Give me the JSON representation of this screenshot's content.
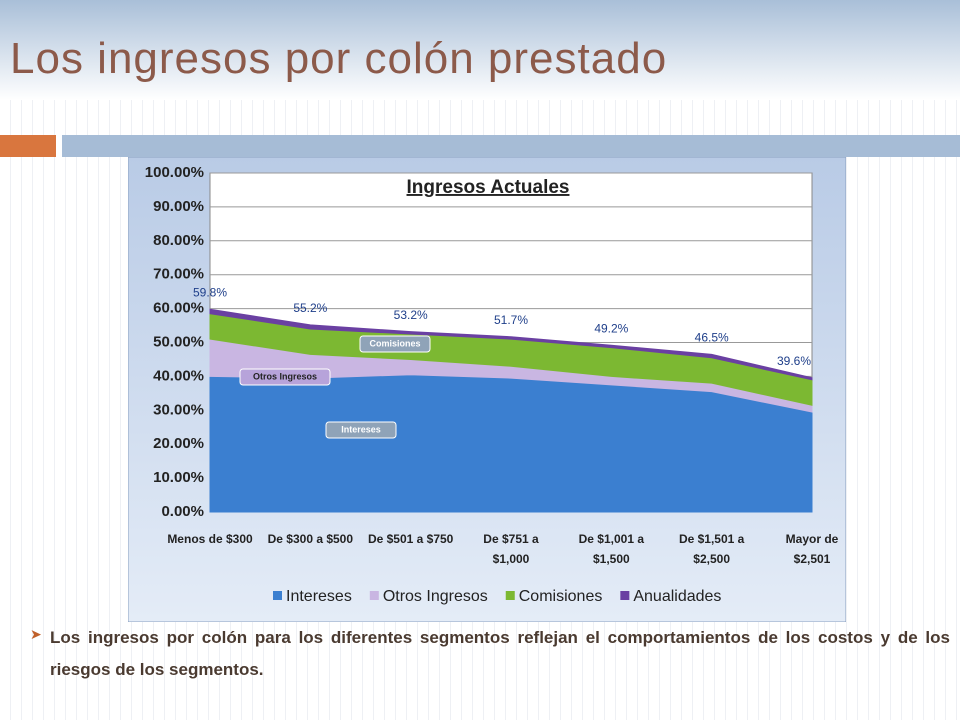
{
  "slide": {
    "title": "Los ingresos por colón prestado",
    "bullet": "Los ingresos por colón para los diferentes segmentos reflejan el comportamientos de los costos y de los riesgos de los segmentos."
  },
  "chart_data": {
    "type": "stacked-area",
    "title": "Ingresos Actuales",
    "categories": [
      "Menos de $300",
      "De $300 a $500",
      "De $501 a $750",
      "De $751 a $1,000",
      "De $1,001 a $1,500",
      "De $1,501 a $2,500",
      "Mayor de $2,501"
    ],
    "series": [
      {
        "name": "Intereses",
        "color": "#3b7fd0",
        "values": [
          40,
          39.5,
          40.5,
          39.5,
          37.5,
          35.5,
          29.5
        ]
      },
      {
        "name": "Otros Ingresos",
        "color": "#c9b6e2",
        "values": [
          11,
          7,
          4.5,
          3.5,
          2.5,
          2.5,
          2
        ]
      },
      {
        "name": "Comisiones",
        "color": "#7cb832",
        "values": [
          7.5,
          7.5,
          7.5,
          8,
          8.5,
          7.5,
          7.5
        ]
      },
      {
        "name": "Anualidades",
        "color": "#6a40a2",
        "values": [
          1.3,
          1.2,
          0.7,
          0.7,
          0.7,
          1.0,
          0.6
        ]
      }
    ],
    "totals": {
      "values": [
        59.8,
        55.2,
        53.2,
        51.7,
        49.2,
        46.5,
        39.6
      ],
      "value_labels": [
        "59.8%",
        "55.2%",
        "53.2%",
        "51.7%",
        "49.2%",
        "46.5%",
        "39.6%"
      ]
    },
    "ylim": [
      0,
      100
    ],
    "yticks": [
      {
        "value": 0,
        "label": "0.00%"
      },
      {
        "value": 10,
        "label": "10.00%"
      },
      {
        "value": 20,
        "label": "20.00%"
      },
      {
        "value": 30,
        "label": "30.00%"
      },
      {
        "value": 40,
        "label": "40.00%"
      },
      {
        "value": 50,
        "label": "50.00%"
      },
      {
        "value": 60,
        "label": "60.00%"
      },
      {
        "value": 70,
        "label": "70.00%"
      },
      {
        "value": 80,
        "label": "80.00%"
      },
      {
        "value": 90,
        "label": "90.00%"
      },
      {
        "value": 100,
        "label": "100.00%"
      }
    ],
    "grid": true,
    "legend": "bottom"
  }
}
